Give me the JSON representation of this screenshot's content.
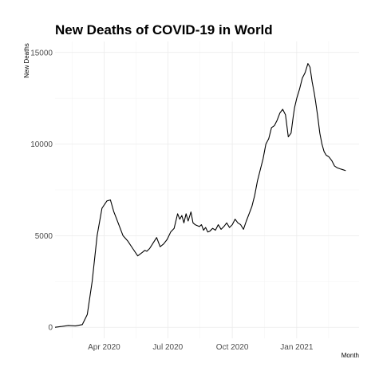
{
  "chart_data": {
    "type": "line",
    "title": "New Deaths of COVID-19 in World",
    "xlabel": "Month",
    "ylabel": "New Deaths",
    "xlim": [
      "2020-01-22",
      "2021-03-31"
    ],
    "ylim": [
      -600,
      15600
    ],
    "x_ticks": [
      {
        "date": "2020-04-01",
        "label": "Apr 2020"
      },
      {
        "date": "2020-07-01",
        "label": "Jul 2020"
      },
      {
        "date": "2020-10-01",
        "label": "Oct 2020"
      },
      {
        "date": "2021-01-01",
        "label": "Jan 2021"
      }
    ],
    "y_ticks": [
      0,
      5000,
      10000,
      15000
    ],
    "grid": true,
    "legend": "none",
    "series": [
      {
        "x": [
          "2020-01-22",
          "2020-02-01",
          "2020-02-10",
          "2020-02-20",
          "2020-03-01",
          "2020-03-08",
          "2020-03-15",
          "2020-03-22",
          "2020-03-29",
          "2020-04-05",
          "2020-04-10",
          "2020-04-15",
          "2020-04-18",
          "2020-04-22",
          "2020-04-28",
          "2020-05-05",
          "2020-05-12",
          "2020-05-19",
          "2020-05-26",
          "2020-05-29",
          "2020-06-01",
          "2020-06-05",
          "2020-06-10",
          "2020-06-15",
          "2020-06-20",
          "2020-06-25",
          "2020-06-30",
          "2020-07-05",
          "2020-07-10",
          "2020-07-15",
          "2020-07-18",
          "2020-07-21",
          "2020-07-24",
          "2020-07-27",
          "2020-07-30",
          "2020-08-03",
          "2020-08-06",
          "2020-08-09",
          "2020-08-12",
          "2020-08-15",
          "2020-08-18",
          "2020-08-21",
          "2020-08-24",
          "2020-08-27",
          "2020-08-30",
          "2020-09-03",
          "2020-09-07",
          "2020-09-11",
          "2020-09-15",
          "2020-09-19",
          "2020-09-23",
          "2020-09-27",
          "2020-10-01",
          "2020-10-05",
          "2020-10-09",
          "2020-10-13",
          "2020-10-17",
          "2020-10-21",
          "2020-10-25",
          "2020-10-29",
          "2020-11-02",
          "2020-11-06",
          "2020-11-10",
          "2020-11-14",
          "2020-11-18",
          "2020-11-22",
          "2020-11-26",
          "2020-11-30",
          "2020-12-04",
          "2020-12-08",
          "2020-12-12",
          "2020-12-16",
          "2020-12-20",
          "2020-12-24",
          "2020-12-27",
          "2020-12-29",
          "2021-01-01",
          "2021-01-05",
          "2021-01-09",
          "2021-01-13",
          "2021-01-17",
          "2021-01-20",
          "2021-01-23",
          "2021-01-26",
          "2021-01-28",
          "2021-01-31",
          "2021-02-03",
          "2021-02-06",
          "2021-02-09",
          "2021-02-12",
          "2021-02-16",
          "2021-02-20",
          "2021-02-24",
          "2021-02-28",
          "2021-03-04",
          "2021-03-08",
          "2021-03-12"
        ],
        "values": [
          0,
          50,
          100,
          80,
          150,
          700,
          2500,
          5000,
          6500,
          6900,
          6950,
          6300,
          6000,
          5600,
          5000,
          4700,
          4300,
          3900,
          4100,
          4200,
          4150,
          4300,
          4600,
          4900,
          4400,
          4550,
          4800,
          5200,
          5400,
          6200,
          5900,
          6100,
          5700,
          6200,
          5800,
          6300,
          5700,
          5600,
          5550,
          5500,
          5600,
          5300,
          5450,
          5200,
          5250,
          5400,
          5300,
          5600,
          5350,
          5500,
          5700,
          5450,
          5600,
          5900,
          5700,
          5600,
          5350,
          5800,
          6200,
          6600,
          7200,
          8000,
          8600,
          9200,
          10000,
          10300,
          10900,
          11000,
          11300,
          11700,
          11900,
          11600,
          10400,
          10600,
          11500,
          12000,
          12500,
          13000,
          13600,
          13900,
          14400,
          14200,
          13400,
          12800,
          12300,
          11500,
          10600,
          10000,
          9600,
          9400,
          9300,
          9100,
          8800,
          8700,
          8650,
          8600,
          8550
        ]
      }
    ]
  }
}
